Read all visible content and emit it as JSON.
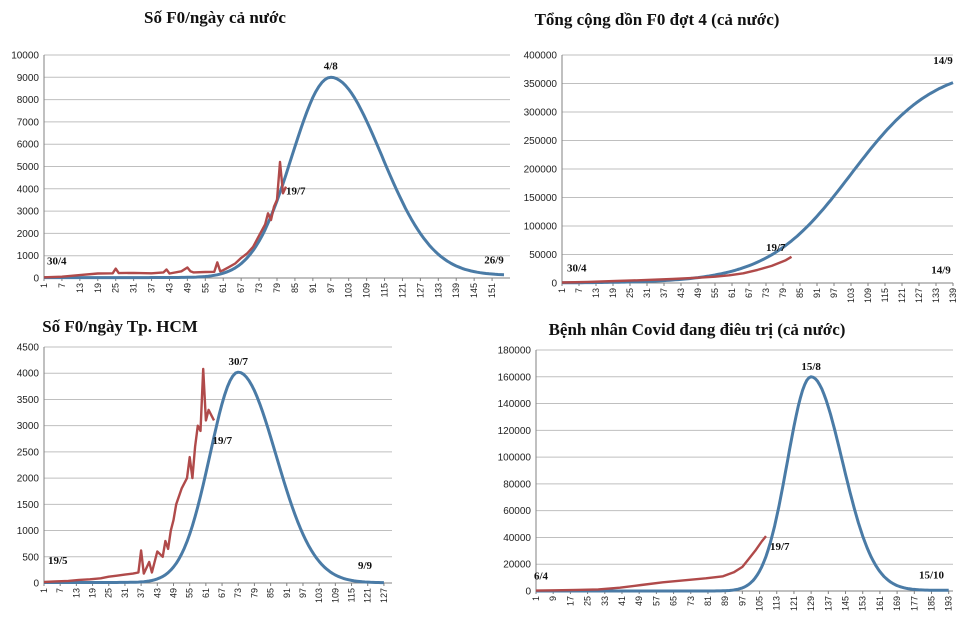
{
  "chart_data": [
    {
      "type": "line",
      "title": "Số F0/ngày cả nước",
      "ylim": [
        0,
        10000
      ],
      "yticks": [
        0,
        1000,
        2000,
        3000,
        4000,
        5000,
        6000,
        7000,
        8000,
        9000,
        10000
      ],
      "xticks": [
        1,
        7,
        13,
        19,
        25,
        31,
        37,
        43,
        49,
        55,
        61,
        67,
        73,
        79,
        85,
        91,
        97,
        103,
        109,
        115,
        121,
        127,
        133,
        139,
        145,
        151
      ],
      "xlim": [
        1,
        157
      ],
      "series": [
        {
          "color": "#4a7ba6",
          "curve": "bell",
          "x0": 1,
          "x1": 155,
          "baseStart": 20,
          "baseEnd": 120,
          "peakX": 97,
          "peakY": 9000,
          "sigmaL": 13,
          "sigmaR": 17
        },
        {
          "color": "#b04a4a",
          "x": [
            1,
            7,
            13,
            19,
            24,
            25,
            26,
            31,
            37,
            41,
            42,
            43,
            47,
            49,
            50,
            51,
            55,
            58,
            59,
            60,
            61,
            63,
            65,
            67,
            69,
            71,
            73,
            75,
            76,
            77,
            78,
            79,
            80,
            81,
            82
          ],
          "y": [
            30,
            60,
            130,
            200,
            210,
            420,
            220,
            230,
            210,
            250,
            380,
            200,
            300,
            470,
            300,
            250,
            270,
            280,
            700,
            300,
            350,
            500,
            650,
            900,
            1100,
            1400,
            1900,
            2400,
            2900,
            2600,
            3200,
            3500,
            5200,
            3800,
            4100
          ]
        }
      ],
      "annotations": [
        {
          "text": "4/8",
          "x": 97,
          "y": 9000
        },
        {
          "text": "19/7",
          "x": 80,
          "y": 4100
        },
        {
          "text": "30/4",
          "x": 1,
          "y": 300
        },
        {
          "text": "26/9",
          "x": 155,
          "y": 300
        }
      ]
    },
    {
      "type": "line",
      "title": "Tổng cộng dồn F0 đợt 4 (cả nước)",
      "ylim": [
        0,
        400000
      ],
      "yticks": [
        0,
        50000,
        100000,
        150000,
        200000,
        250000,
        300000,
        350000,
        400000
      ],
      "xticks": [
        1,
        7,
        13,
        19,
        25,
        31,
        37,
        43,
        49,
        55,
        61,
        67,
        73,
        79,
        85,
        91,
        97,
        103,
        109,
        115,
        121,
        127,
        133,
        139
      ],
      "xlim": [
        1,
        139
      ],
      "series": [
        {
          "color": "#4a7ba6",
          "curve": "logistic",
          "x0": 1,
          "x1": 139,
          "K": 382000,
          "mid": 103,
          "k": 0.068
        },
        {
          "color": "#b04a4a",
          "x": [
            1,
            10,
            20,
            30,
            40,
            50,
            55,
            60,
            65,
            70,
            75,
            80,
            82
          ],
          "y": [
            800,
            2000,
            3500,
            5000,
            7000,
            9500,
            11000,
            13500,
            17000,
            23000,
            30000,
            40000,
            46000
          ]
        }
      ],
      "annotations": [
        {
          "text": "14/9",
          "x": 139,
          "y": 372000
        },
        {
          "text": "19/7",
          "x": 82,
          "y": 46000
        },
        {
          "text": "30/4",
          "x": 1,
          "y": 10000
        },
        {
          "text": "14/9",
          "x": 139,
          "y": 10000
        }
      ]
    },
    {
      "type": "line",
      "title": "Số F0/ngày Tp. HCM",
      "ylim": [
        0,
        4500
      ],
      "yticks": [
        0,
        500,
        1000,
        1500,
        2000,
        2500,
        3000,
        3500,
        4000,
        4500
      ],
      "xticks": [
        1,
        7,
        13,
        19,
        25,
        31,
        37,
        43,
        49,
        55,
        61,
        67,
        73,
        79,
        85,
        91,
        97,
        103,
        109,
        115,
        121,
        127
      ],
      "xlim": [
        1,
        130
      ],
      "series": [
        {
          "color": "#4a7ba6",
          "curve": "bell",
          "x0": 1,
          "x1": 127,
          "baseStart": 10,
          "baseEnd": 5,
          "peakX": 73,
          "peakY": 4020,
          "sigmaL": 10.5,
          "sigmaR": 14
        },
        {
          "color": "#b04a4a",
          "x": [
            1,
            5,
            10,
            14,
            18,
            22,
            25,
            28,
            31,
            34,
            36,
            37,
            38,
            40,
            41,
            43,
            45,
            46,
            47,
            48,
            49,
            50,
            52,
            54,
            55,
            56,
            57,
            58,
            59,
            60,
            61,
            62,
            63,
            64
          ],
          "y": [
            20,
            30,
            40,
            60,
            70,
            90,
            120,
            140,
            160,
            180,
            200,
            620,
            180,
            400,
            200,
            600,
            500,
            800,
            650,
            1000,
            1200,
            1500,
            1800,
            2000,
            2400,
            2000,
            2600,
            3000,
            2900,
            4080,
            3100,
            3300,
            3200,
            3100
          ]
        }
      ],
      "annotations": [
        {
          "text": "30/7",
          "x": 73,
          "y": 4020
        },
        {
          "text": "19/7",
          "x": 62,
          "y": 2900
        },
        {
          "text": "19/5",
          "x": 1,
          "y": 250
        },
        {
          "text": "9/9",
          "x": 120,
          "y": 150
        }
      ]
    },
    {
      "type": "line",
      "title": "Bệnh nhân Covid đang điêu trị (cả nước)",
      "ylim": [
        0,
        180000
      ],
      "yticks": [
        0,
        20000,
        40000,
        60000,
        80000,
        100000,
        120000,
        140000,
        160000,
        180000
      ],
      "xticks": [
        1,
        9,
        17,
        25,
        33,
        41,
        49,
        57,
        65,
        73,
        81,
        89,
        97,
        105,
        113,
        121,
        129,
        137,
        145,
        153,
        161,
        169,
        177,
        185,
        193
      ],
      "xlim": [
        1,
        195
      ],
      "series": [
        {
          "color": "#4a7ba6",
          "curve": "bell",
          "x0": 1,
          "x1": 193,
          "baseStart": 0,
          "baseEnd": 500,
          "peakX": 129,
          "peakY": 160000,
          "sigmaL": 11,
          "sigmaR": 14.5,
          "rampAmp": 12000
        },
        {
          "color": "#b04a4a",
          "x": [
            1,
            10,
            20,
            30,
            40,
            50,
            60,
            70,
            80,
            88,
            93,
            97,
            100,
            103,
            106,
            108
          ],
          "y": [
            300,
            500,
            800,
            1200,
            2500,
            4500,
            6500,
            8000,
            9500,
            11000,
            14000,
            18000,
            24000,
            30000,
            37000,
            41000
          ]
        }
      ],
      "annotations": [
        {
          "text": "15/8",
          "x": 129,
          "y": 160000
        },
        {
          "text": "19/7",
          "x": 108,
          "y": 41000
        },
        {
          "text": "6/4",
          "x": 1,
          "y": 5000
        },
        {
          "text": "15/10",
          "x": 185,
          "y": 5000
        }
      ]
    }
  ]
}
